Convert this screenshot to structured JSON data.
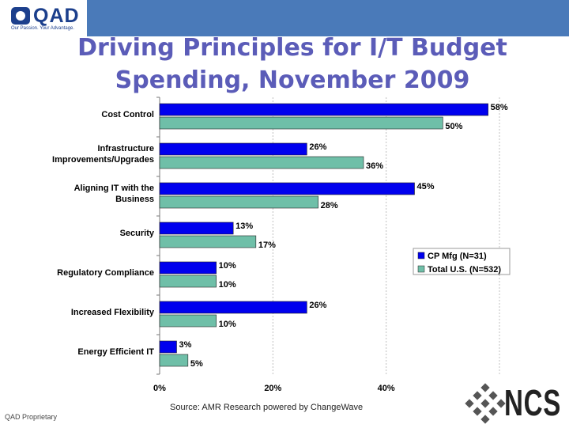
{
  "header": {
    "logo_text": "QAD",
    "logo_tagline": "Our Passion. Your Advantage."
  },
  "slide": {
    "title_line1": "Driving Principles for I/T Budget",
    "title_line2": "Spending, November 2009",
    "source": "Source: AMR Research powered by ChangeWave",
    "footer": "QAD Proprietary",
    "brand_logo_text": "NCS"
  },
  "colors": {
    "header_bar": "#4a7ab9",
    "title": "#5b5cb8",
    "series1": "#0000ee",
    "series2": "#6fbfa8",
    "gridline": "#c0c0c0"
  },
  "chart_data": {
    "type": "bar",
    "orientation": "horizontal",
    "categories": [
      "Cost Control",
      "Infrastructure Improvements/Upgrades",
      "Aligning IT with the Business",
      "Security",
      "Regulatory Compliance",
      "Increased Flexibility",
      "Energy Efficient IT"
    ],
    "category_lines": [
      [
        "Cost Control"
      ],
      [
        "Infrastructure",
        "Improvements/Upgrades"
      ],
      [
        "Aligning IT with the",
        "Business"
      ],
      [
        "Security"
      ],
      [
        "Regulatory Compliance"
      ],
      [
        "Increased Flexibility"
      ],
      [
        "Energy Efficient IT"
      ]
    ],
    "series": [
      {
        "name": "CP Mfg (N=31)",
        "values": [
          58,
          26,
          45,
          13,
          10,
          26,
          3
        ],
        "labels": [
          "58%",
          "26%",
          "45%",
          "13%",
          "10%",
          "26%",
          "3%"
        ]
      },
      {
        "name": "Total U.S. (N=532)",
        "values": [
          50,
          36,
          28,
          17,
          10,
          10,
          5
        ],
        "labels": [
          "50%",
          "36%",
          "28%",
          "17%",
          "10%",
          "10%",
          "5%"
        ]
      }
    ],
    "xlim": [
      0,
      60
    ],
    "xticks": [
      0,
      20,
      40
    ],
    "xtick_labels": [
      "0%",
      "20%",
      "40%"
    ],
    "grid": true,
    "legend_position": "right"
  }
}
